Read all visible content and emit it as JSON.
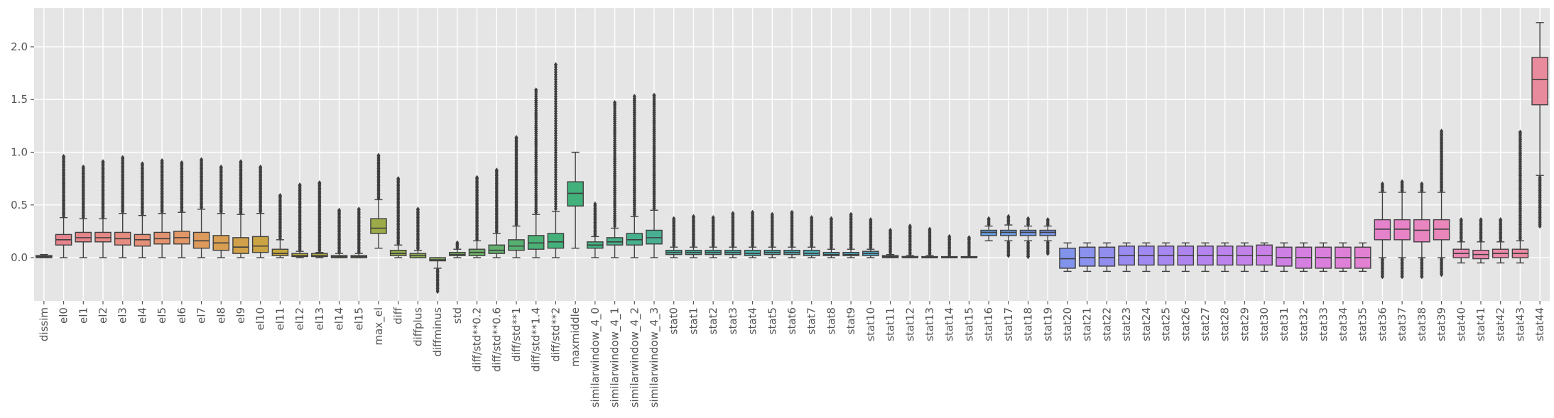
{
  "chart_data": {
    "type": "box",
    "title": "",
    "xlabel": "",
    "ylabel": "",
    "ylim": [
      -0.41,
      2.37
    ],
    "yticks": [
      0.0,
      0.5,
      1.0,
      1.5,
      2.0
    ],
    "ytick_labels": [
      "0.0",
      "0.5",
      "1.0",
      "1.5",
      "2.0"
    ],
    "grid": true,
    "style": "ggplot",
    "series": [
      {
        "name": "dissim",
        "whislo": 0.0,
        "q1": 0.0,
        "med": 0.01,
        "q3": 0.02,
        "whishi": 0.03,
        "flier_lo": null,
        "flier_hi": null,
        "color": "#e17b8c"
      },
      {
        "name": "el0",
        "whislo": 0.0,
        "q1": 0.12,
        "med": 0.17,
        "q3": 0.22,
        "whishi": 0.38,
        "flier_lo": null,
        "flier_hi": 0.96,
        "color": "#e5828d"
      },
      {
        "name": "el1",
        "whislo": 0.0,
        "q1": 0.15,
        "med": 0.19,
        "q3": 0.24,
        "whishi": 0.37,
        "flier_lo": null,
        "flier_hi": 0.86,
        "color": "#e5858a"
      },
      {
        "name": "el2",
        "whislo": 0.0,
        "q1": 0.15,
        "med": 0.19,
        "q3": 0.24,
        "whishi": 0.37,
        "flier_lo": null,
        "flier_hi": 0.91,
        "color": "#e68986"
      },
      {
        "name": "el3",
        "whislo": 0.0,
        "q1": 0.12,
        "med": 0.18,
        "q3": 0.24,
        "whishi": 0.42,
        "flier_lo": null,
        "flier_hi": 0.95,
        "color": "#e68c80"
      },
      {
        "name": "el4",
        "whislo": 0.0,
        "q1": 0.11,
        "med": 0.17,
        "q3": 0.22,
        "whishi": 0.4,
        "flier_lo": null,
        "flier_hi": 0.89,
        "color": "#e58f78"
      },
      {
        "name": "el5",
        "whislo": 0.0,
        "q1": 0.13,
        "med": 0.18,
        "q3": 0.24,
        "whishi": 0.42,
        "flier_lo": null,
        "flier_hi": 0.92,
        "color": "#e49370"
      },
      {
        "name": "el6",
        "whislo": 0.0,
        "q1": 0.13,
        "med": 0.19,
        "q3": 0.25,
        "whishi": 0.43,
        "flier_lo": null,
        "flier_hi": 0.9,
        "color": "#e19766"
      },
      {
        "name": "el7",
        "whislo": 0.0,
        "q1": 0.09,
        "med": 0.16,
        "q3": 0.24,
        "whishi": 0.46,
        "flier_lo": null,
        "flier_hi": 0.93,
        "color": "#dd9a5c"
      },
      {
        "name": "el8",
        "whislo": 0.0,
        "q1": 0.07,
        "med": 0.14,
        "q3": 0.21,
        "whishi": 0.42,
        "flier_lo": null,
        "flier_hi": 0.86,
        "color": "#d89e52"
      },
      {
        "name": "el9",
        "whislo": 0.0,
        "q1": 0.04,
        "med": 0.1,
        "q3": 0.19,
        "whishi": 0.41,
        "flier_lo": null,
        "flier_hi": 0.91,
        "color": "#d1a14a"
      },
      {
        "name": "el10",
        "whislo": 0.0,
        "q1": 0.05,
        "med": 0.11,
        "q3": 0.2,
        "whishi": 0.42,
        "flier_lo": null,
        "flier_hi": 0.86,
        "color": "#caa443"
      },
      {
        "name": "el11",
        "whislo": 0.0,
        "q1": 0.02,
        "med": 0.04,
        "q3": 0.08,
        "whishi": 0.17,
        "flier_lo": null,
        "flier_hi": 0.59,
        "color": "#c2a63f"
      },
      {
        "name": "el12",
        "whislo": 0.0,
        "q1": 0.01,
        "med": 0.02,
        "q3": 0.04,
        "whishi": 0.06,
        "flier_lo": null,
        "flier_hi": 0.69,
        "color": "#bba83d"
      },
      {
        "name": "el13",
        "whislo": 0.0,
        "q1": 0.01,
        "med": 0.02,
        "q3": 0.04,
        "whishi": 0.05,
        "flier_lo": null,
        "flier_hi": 0.71,
        "color": "#b3a93d"
      },
      {
        "name": "el14",
        "whislo": 0.0,
        "q1": 0.0,
        "med": 0.01,
        "q3": 0.02,
        "whishi": 0.04,
        "flier_lo": null,
        "flier_hi": 0.45,
        "color": "#abaa3f"
      },
      {
        "name": "el15",
        "whislo": 0.0,
        "q1": 0.0,
        "med": 0.01,
        "q3": 0.02,
        "whishi": 0.04,
        "flier_lo": null,
        "flier_hi": 0.46,
        "color": "#a3ac42"
      },
      {
        "name": "max_el",
        "whislo": 0.09,
        "q1": 0.23,
        "med": 0.28,
        "q3": 0.37,
        "whishi": 0.55,
        "flier_lo": null,
        "flier_hi": 0.97,
        "color": "#9cab47"
      },
      {
        "name": "diff",
        "whislo": 0.0,
        "q1": 0.02,
        "med": 0.04,
        "q3": 0.07,
        "whishi": 0.12,
        "flier_lo": null,
        "flier_hi": 0.75,
        "color": "#94ac4e"
      },
      {
        "name": "diffplus",
        "whislo": 0.0,
        "q1": 0.0,
        "med": 0.02,
        "q3": 0.04,
        "whishi": 0.07,
        "flier_lo": null,
        "flier_hi": 0.46,
        "color": "#8cad55"
      },
      {
        "name": "diffminus",
        "whislo": -0.1,
        "q1": -0.03,
        "med": -0.02,
        "q3": 0.0,
        "whishi": 0.0,
        "flier_lo": -0.32,
        "flier_hi": null,
        "color": "#82ae5c"
      },
      {
        "name": "std",
        "whislo": 0.0,
        "q1": 0.02,
        "med": 0.03,
        "q3": 0.05,
        "whishi": 0.08,
        "flier_lo": null,
        "flier_hi": 0.14,
        "color": "#78ae63"
      },
      {
        "name": "diff/std**0.2",
        "whislo": 0.0,
        "q1": 0.02,
        "med": 0.05,
        "q3": 0.08,
        "whishi": 0.16,
        "flier_lo": null,
        "flier_hi": 0.76,
        "color": "#6daf69"
      },
      {
        "name": "diff/std**0.6",
        "whislo": 0.0,
        "q1": 0.04,
        "med": 0.07,
        "q3": 0.12,
        "whishi": 0.23,
        "flier_lo": null,
        "flier_hi": 0.83,
        "color": "#62b06e"
      },
      {
        "name": "diff/std**1",
        "whislo": 0.0,
        "q1": 0.07,
        "med": 0.11,
        "q3": 0.17,
        "whishi": 0.3,
        "flier_lo": null,
        "flier_hi": 1.14,
        "color": "#56b072"
      },
      {
        "name": "diff/std**1.4",
        "whislo": 0.0,
        "q1": 0.08,
        "med": 0.14,
        "q3": 0.21,
        "whishi": 0.41,
        "flier_lo": null,
        "flier_hi": 1.59,
        "color": "#4bb176"
      },
      {
        "name": "diff/std**2",
        "whislo": 0.0,
        "q1": 0.09,
        "med": 0.15,
        "q3": 0.23,
        "whishi": 0.44,
        "flier_lo": null,
        "flier_hi": 1.83,
        "color": "#43b179"
      },
      {
        "name": "maxmiddle",
        "whislo": 0.09,
        "q1": 0.49,
        "med": 0.61,
        "q3": 0.72,
        "whishi": 1.0,
        "flier_lo": null,
        "flier_hi": null,
        "color": "#43b17c"
      },
      {
        "name": "similarwindow_4_0",
        "whislo": 0.0,
        "q1": 0.09,
        "med": 0.12,
        "q3": 0.15,
        "whishi": 0.2,
        "flier_lo": null,
        "flier_hi": 0.51,
        "color": "#45b181"
      },
      {
        "name": "similarwindow_4_1",
        "whislo": 0.0,
        "q1": 0.12,
        "med": 0.15,
        "q3": 0.19,
        "whishi": 0.28,
        "flier_lo": null,
        "flier_hi": 1.47,
        "color": "#46b086"
      },
      {
        "name": "similarwindow_4_2",
        "whislo": 0.0,
        "q1": 0.12,
        "med": 0.17,
        "q3": 0.23,
        "whishi": 0.39,
        "flier_lo": null,
        "flier_hi": 1.53,
        "color": "#47b08c"
      },
      {
        "name": "similarwindow_4_3",
        "whislo": 0.0,
        "q1": 0.13,
        "med": 0.19,
        "q3": 0.26,
        "whishi": 0.45,
        "flier_lo": null,
        "flier_hi": 1.54,
        "color": "#48af92"
      },
      {
        "name": "stat0",
        "whislo": 0.0,
        "q1": 0.03,
        "med": 0.05,
        "q3": 0.07,
        "whishi": 0.1,
        "flier_lo": null,
        "flier_hi": 0.37,
        "color": "#49af98"
      },
      {
        "name": "stat1",
        "whislo": 0.0,
        "q1": 0.03,
        "med": 0.05,
        "q3": 0.07,
        "whishi": 0.1,
        "flier_lo": null,
        "flier_hi": 0.39,
        "color": "#4aae9d"
      },
      {
        "name": "stat2",
        "whislo": 0.0,
        "q1": 0.03,
        "med": 0.05,
        "q3": 0.07,
        "whishi": 0.1,
        "flier_lo": null,
        "flier_hi": 0.38,
        "color": "#4baea1"
      },
      {
        "name": "stat3",
        "whislo": 0.0,
        "q1": 0.03,
        "med": 0.05,
        "q3": 0.07,
        "whishi": 0.1,
        "flier_lo": null,
        "flier_hi": 0.42,
        "color": "#4cada6"
      },
      {
        "name": "stat4",
        "whislo": 0.0,
        "q1": 0.02,
        "med": 0.04,
        "q3": 0.07,
        "whishi": 0.1,
        "flier_lo": null,
        "flier_hi": 0.43,
        "color": "#4dadaa"
      },
      {
        "name": "stat5",
        "whislo": 0.0,
        "q1": 0.03,
        "med": 0.05,
        "q3": 0.07,
        "whishi": 0.1,
        "flier_lo": null,
        "flier_hi": 0.41,
        "color": "#4eacae"
      },
      {
        "name": "stat6",
        "whislo": 0.0,
        "q1": 0.03,
        "med": 0.05,
        "q3": 0.07,
        "whishi": 0.1,
        "flier_lo": null,
        "flier_hi": 0.43,
        "color": "#4fabb2"
      },
      {
        "name": "stat7",
        "whislo": 0.0,
        "q1": 0.02,
        "med": 0.04,
        "q3": 0.07,
        "whishi": 0.1,
        "flier_lo": null,
        "flier_hi": 0.38,
        "color": "#50abb6"
      },
      {
        "name": "stat8",
        "whislo": 0.0,
        "q1": 0.02,
        "med": 0.03,
        "q3": 0.05,
        "whishi": 0.08,
        "flier_lo": null,
        "flier_hi": 0.37,
        "color": "#51aaba"
      },
      {
        "name": "stat9",
        "whislo": 0.0,
        "q1": 0.02,
        "med": 0.03,
        "q3": 0.05,
        "whishi": 0.08,
        "flier_lo": null,
        "flier_hi": 0.41,
        "color": "#52a9be"
      },
      {
        "name": "stat10",
        "whislo": 0.0,
        "q1": 0.02,
        "med": 0.04,
        "q3": 0.06,
        "whishi": 0.08,
        "flier_lo": null,
        "flier_hi": 0.36,
        "color": "#53a8c3"
      },
      {
        "name": "stat11",
        "whislo": 0.0,
        "q1": 0.0,
        "med": 0.01,
        "q3": 0.02,
        "whishi": 0.03,
        "flier_lo": null,
        "flier_hi": 0.26,
        "color": "#55a7c8"
      },
      {
        "name": "stat12",
        "whislo": 0.0,
        "q1": 0.0,
        "med": 0.01,
        "q3": 0.01,
        "whishi": 0.02,
        "flier_lo": null,
        "flier_hi": 0.3,
        "color": "#57a6cd"
      },
      {
        "name": "stat13",
        "whislo": 0.0,
        "q1": 0.0,
        "med": 0.0,
        "q3": 0.01,
        "whishi": 0.02,
        "flier_lo": null,
        "flier_hi": 0.27,
        "color": "#59a5d2"
      },
      {
        "name": "stat14",
        "whislo": 0.0,
        "q1": 0.0,
        "med": 0.0,
        "q3": 0.01,
        "whishi": 0.01,
        "flier_lo": null,
        "flier_hi": 0.2,
        "color": "#5ca3d7"
      },
      {
        "name": "stat15",
        "whislo": 0.0,
        "q1": 0.0,
        "med": 0.0,
        "q3": 0.01,
        "whishi": 0.01,
        "flier_lo": null,
        "flier_hi": 0.19,
        "color": "#60a1dc"
      },
      {
        "name": "stat16",
        "whislo": 0.16,
        "q1": 0.21,
        "med": 0.24,
        "q3": 0.26,
        "whishi": 0.3,
        "flier_lo": null,
        "flier_hi": 0.37,
        "color": "#659fe0"
      },
      {
        "name": "stat17",
        "whislo": 0.16,
        "q1": 0.21,
        "med": 0.24,
        "q3": 0.26,
        "whishi": 0.31,
        "flier_lo": 0.02,
        "flier_hi": 0.39,
        "color": "#6b9ce4"
      },
      {
        "name": "stat18",
        "whislo": 0.16,
        "q1": 0.21,
        "med": 0.24,
        "q3": 0.26,
        "whishi": 0.3,
        "flier_lo": 0.01,
        "flier_hi": 0.37,
        "color": "#7299e7"
      },
      {
        "name": "stat19",
        "whislo": 0.16,
        "q1": 0.21,
        "med": 0.24,
        "q3": 0.26,
        "whishi": 0.3,
        "flier_lo": 0.04,
        "flier_hi": 0.36,
        "color": "#7a96ea"
      },
      {
        "name": "stat20",
        "whislo": -0.13,
        "q1": -0.1,
        "med": -0.01,
        "q3": 0.09,
        "whishi": 0.14,
        "flier_lo": null,
        "flier_hi": null,
        "color": "#8293ec"
      },
      {
        "name": "stat21",
        "whislo": -0.13,
        "q1": -0.08,
        "med": 0.0,
        "q3": 0.1,
        "whishi": 0.14,
        "flier_lo": null,
        "flier_hi": null,
        "color": "#8a91ee"
      },
      {
        "name": "stat22",
        "whislo": -0.13,
        "q1": -0.08,
        "med": 0.0,
        "q3": 0.1,
        "whishi": 0.14,
        "flier_lo": null,
        "flier_hi": null,
        "color": "#928eef"
      },
      {
        "name": "stat23",
        "whislo": -0.13,
        "q1": -0.07,
        "med": 0.02,
        "q3": 0.11,
        "whishi": 0.14,
        "flier_lo": null,
        "flier_hi": null,
        "color": "#998bf0"
      },
      {
        "name": "stat24",
        "whislo": -0.13,
        "q1": -0.07,
        "med": 0.02,
        "q3": 0.11,
        "whishi": 0.14,
        "flier_lo": null,
        "flier_hi": null,
        "color": "#a089f0"
      },
      {
        "name": "stat25",
        "whislo": -0.13,
        "q1": -0.07,
        "med": 0.02,
        "q3": 0.11,
        "whishi": 0.14,
        "flier_lo": null,
        "flier_hi": null,
        "color": "#a787f0"
      },
      {
        "name": "stat26",
        "whislo": -0.13,
        "q1": -0.07,
        "med": 0.02,
        "q3": 0.11,
        "whishi": 0.14,
        "flier_lo": null,
        "flier_hi": null,
        "color": "#ae85ef"
      },
      {
        "name": "stat27",
        "whislo": -0.13,
        "q1": -0.07,
        "med": 0.02,
        "q3": 0.11,
        "whishi": 0.14,
        "flier_lo": null,
        "flier_hi": null,
        "color": "#b584ee"
      },
      {
        "name": "stat28",
        "whislo": -0.13,
        "q1": -0.07,
        "med": 0.02,
        "q3": 0.11,
        "whishi": 0.14,
        "flier_lo": null,
        "flier_hi": null,
        "color": "#bc83ec"
      },
      {
        "name": "stat29",
        "whislo": -0.13,
        "q1": -0.07,
        "med": 0.02,
        "q3": 0.11,
        "whishi": 0.14,
        "flier_lo": null,
        "flier_hi": null,
        "color": "#c382ea"
      },
      {
        "name": "stat30",
        "whislo": -0.13,
        "q1": -0.07,
        "med": 0.02,
        "q3": 0.12,
        "whishi": 0.14,
        "flier_lo": null,
        "flier_hi": null,
        "color": "#c981e7"
      },
      {
        "name": "stat31",
        "whislo": -0.13,
        "q1": -0.08,
        "med": 0.0,
        "q3": 0.1,
        "whishi": 0.14,
        "flier_lo": null,
        "flier_hi": null,
        "color": "#cf80e4"
      },
      {
        "name": "stat32",
        "whislo": -0.13,
        "q1": -0.1,
        "med": 0.0,
        "q3": 0.1,
        "whishi": 0.14,
        "flier_lo": null,
        "flier_hi": null,
        "color": "#d580e0"
      },
      {
        "name": "stat33",
        "whislo": -0.13,
        "q1": -0.1,
        "med": 0.0,
        "q3": 0.1,
        "whishi": 0.14,
        "flier_lo": null,
        "flier_hi": null,
        "color": "#da80dc"
      },
      {
        "name": "stat34",
        "whislo": -0.13,
        "q1": -0.1,
        "med": 0.0,
        "q3": 0.1,
        "whishi": 0.14,
        "flier_lo": null,
        "flier_hi": null,
        "color": "#de80d7"
      },
      {
        "name": "stat35",
        "whislo": -0.13,
        "q1": -0.1,
        "med": 0.0,
        "q3": 0.1,
        "whishi": 0.14,
        "flier_lo": null,
        "flier_hi": null,
        "color": "#e281d2"
      },
      {
        "name": "stat36",
        "whislo": 0.0,
        "q1": 0.17,
        "med": 0.27,
        "q3": 0.36,
        "whishi": 0.62,
        "flier_lo": -0.18,
        "flier_hi": 0.7,
        "color": "#e582cc"
      },
      {
        "name": "stat37",
        "whislo": 0.0,
        "q1": 0.17,
        "med": 0.27,
        "q3": 0.36,
        "whishi": 0.62,
        "flier_lo": -0.18,
        "flier_hi": 0.72,
        "color": "#e783c6"
      },
      {
        "name": "stat38",
        "whislo": 0.0,
        "q1": 0.15,
        "med": 0.26,
        "q3": 0.36,
        "whishi": 0.62,
        "flier_lo": -0.18,
        "flier_hi": 0.7,
        "color": "#e985c0"
      },
      {
        "name": "stat39",
        "whislo": 0.0,
        "q1": 0.17,
        "med": 0.27,
        "q3": 0.36,
        "whishi": 0.62,
        "flier_lo": -0.16,
        "flier_hi": 1.2,
        "color": "#ea87ba"
      },
      {
        "name": "stat40",
        "whislo": -0.05,
        "q1": 0.0,
        "med": 0.04,
        "q3": 0.08,
        "whishi": 0.15,
        "flier_lo": null,
        "flier_hi": 0.36,
        "color": "#eb88b4"
      },
      {
        "name": "stat41",
        "whislo": -0.05,
        "q1": -0.01,
        "med": 0.03,
        "q3": 0.07,
        "whishi": 0.15,
        "flier_lo": null,
        "flier_hi": 0.36,
        "color": "#ea89ae"
      },
      {
        "name": "stat42",
        "whislo": -0.05,
        "q1": 0.0,
        "med": 0.04,
        "q3": 0.08,
        "whishi": 0.15,
        "flier_lo": null,
        "flier_hi": 0.36,
        "color": "#ea8aa8"
      },
      {
        "name": "stat43",
        "whislo": -0.05,
        "q1": 0.0,
        "med": 0.04,
        "q3": 0.08,
        "whishi": 0.16,
        "flier_lo": null,
        "flier_hi": 1.19,
        "color": "#e98aa2"
      },
      {
        "name": "stat44",
        "whislo": 0.78,
        "q1": 1.45,
        "med": 1.69,
        "q3": 1.9,
        "whishi": 2.23,
        "flier_lo": 0.3,
        "flier_hi": null,
        "color": "#e88b9c"
      }
    ]
  }
}
